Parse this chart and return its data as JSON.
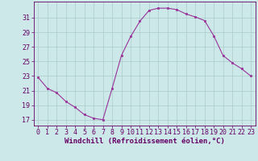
{
  "x": [
    0,
    1,
    2,
    3,
    4,
    5,
    6,
    7,
    8,
    9,
    10,
    11,
    12,
    13,
    14,
    15,
    16,
    17,
    18,
    19,
    20,
    21,
    22,
    23
  ],
  "y": [
    22.8,
    21.3,
    20.7,
    19.5,
    18.7,
    17.7,
    17.2,
    17.0,
    21.3,
    25.8,
    28.4,
    30.5,
    32.0,
    32.3,
    32.3,
    32.1,
    31.5,
    31.1,
    30.6,
    28.5,
    25.8,
    24.8,
    24.0,
    23.0
  ],
  "background_color": "#cce8e8",
  "line_color": "#993399",
  "marker_color": "#993399",
  "xlabel": "Windchill (Refroidissement éolien,°C)",
  "ylabel_ticks": [
    17,
    19,
    21,
    23,
    25,
    27,
    29,
    31
  ],
  "ylim": [
    16.2,
    33.2
  ],
  "xlim": [
    -0.5,
    23.5
  ],
  "grid_color": "#aacccc",
  "tick_color": "#660066",
  "label_color": "#660066",
  "font_size": 6.5,
  "xlabel_fontsize": 6.5
}
